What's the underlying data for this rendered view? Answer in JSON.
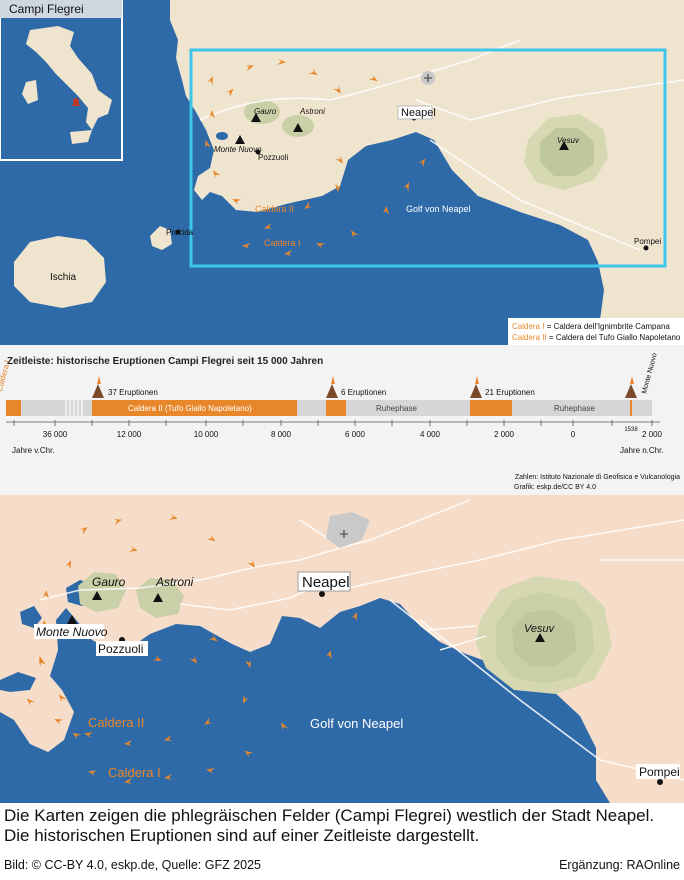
{
  "overview_map": {
    "title": "Campi Flegrei",
    "labels": {
      "neapel": "Neapel",
      "vesuv": "Vesuv",
      "gauro": "Gauro",
      "astroni": "Astroni",
      "monte_nuovo": "Monte Nuovo",
      "pozzuoli": "Pozzuoli",
      "caldera_1": "Caldera I",
      "caldera_2": "Caldera II",
      "golf": "Golf von Neapel",
      "pompei": "Pompei",
      "procida": "Procida",
      "ischia": "Ischia"
    },
    "legend": [
      {
        "key": "Caldera I",
        "sep": " = ",
        "text": "Caldera dell'Ignimbrite Campana"
      },
      {
        "key": "Caldera II",
        "sep": " = ",
        "text": "Caldera del Tufo Giallo Napoletano"
      }
    ]
  },
  "timeline": {
    "title": "Zeitleiste: historische Eruptionen Campi Flegrei seit 15 000 Jahren",
    "caldera_1_label": "Caldera I",
    "bar_caldera_2": "Caldera II  (Tufo Giallo Napoletano)",
    "ruhephase_1": "Ruhephase",
    "ruhephase_2": "Ruhephase",
    "eruptions_1": "37 Eruptionen",
    "eruptions_2": "6 Eruptionen",
    "eruptions_3": "21 Eruptionen",
    "monte_nuovo": "Monte Nuovo",
    "year_1538": "1538",
    "ticks": [
      "36 000",
      "12 000",
      "10 000",
      "8 000",
      "6 000",
      "4 000",
      "2 000",
      "0",
      "2 000"
    ],
    "era_bc": "Jahre v.Chr.",
    "era_ad": "Jahre n.Chr.",
    "source_1": "Zahlen: Istituto Nazionale di Geofisica e Vulcanologia",
    "source_2": "Grafik: eskp.de/CC BY 4.0"
  },
  "detail_map": {
    "labels": {
      "neapel": "Neapel",
      "vesuv": "Vesuv",
      "gauro": "Gauro",
      "astroni": "Astroni",
      "monte_nuovo": "Monte Nuovo",
      "pozzuoli": "Pozzuoli",
      "caldera_1": "Caldera I",
      "caldera_2": "Caldera II",
      "golf": "Golf von Neapel",
      "pompei": "Pompei"
    }
  },
  "caption": "Die Karten zeigen die phlegräischen Felder (Campi Flegrei) westlich der Stadt Neapel. Die historischen Eruptionen sind auf einer Zeitleiste dargestellt.",
  "credit_left": "Bild: © CC-BY 4.0, eskp.de, Quelle: GFZ 2025",
  "credit_right": "Ergänzung: RAOnline",
  "colors": {
    "sea": "#2f6aa8",
    "land": "#efe4ce",
    "land_detail": "#f6ddc9",
    "orange": "#e8872a",
    "frame": "#3cc6ea",
    "volcano": "#bfc79e"
  }
}
